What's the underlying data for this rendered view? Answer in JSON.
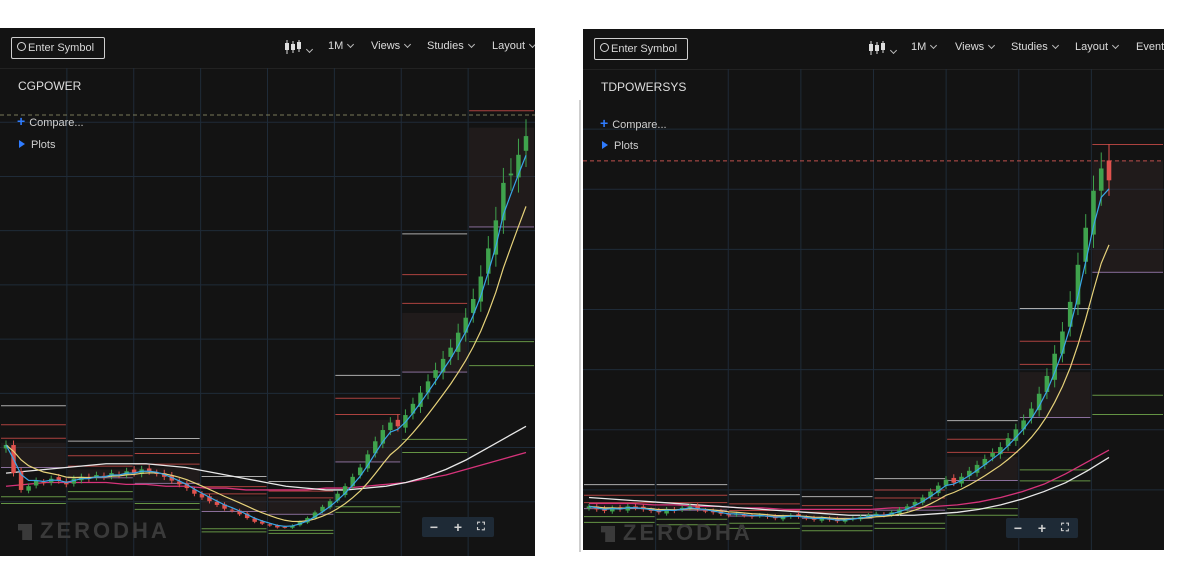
{
  "toolbar": {
    "symbol_placeholder": "Enter Symbol",
    "interval": "1M",
    "views": "Views",
    "studies": "Studies",
    "layout": "Layout",
    "events": "Events"
  },
  "legend": {
    "compare": "Compare...",
    "plots": "Plots"
  },
  "watermark": "ZERODHA",
  "zoom": {
    "minus": "−",
    "plus": "+",
    "fit": "⛶"
  },
  "colors": {
    "up": "#3fa34d",
    "down": "#e0524e",
    "ema_fast": "#39a7e8",
    "ema_mid": "#e6d27a",
    "sma_long": "#e8e8e8",
    "sma_longer": "#d6337a",
    "grid": "#1f2b38",
    "bg": "#131313"
  },
  "chart_data": [
    {
      "type": "candlestick",
      "title": "CGPOWER",
      "xlabel": "",
      "ylabel": "",
      "grid": true,
      "close": [
        60,
        45,
        36,
        38,
        41,
        40,
        42,
        41,
        39,
        42,
        43,
        42,
        44,
        43,
        45,
        44,
        46,
        45,
        47,
        46,
        45,
        43,
        41,
        39,
        37,
        34,
        32,
        30,
        28,
        26,
        25,
        23,
        21,
        19,
        18,
        17,
        16,
        16,
        17,
        19,
        21,
        24,
        27,
        30,
        34,
        38,
        43,
        48,
        55,
        62,
        68,
        72,
        70,
        76,
        82,
        88,
        94,
        100,
        106,
        112,
        120,
        128,
        138,
        150,
        165,
        180,
        200,
        205,
        215,
        225
      ],
      "fast_ma_color": "#39a7e8",
      "mid_ma_color": "#e6d27a",
      "long_ma": [
        45,
        46,
        47,
        48,
        49,
        50,
        50,
        50,
        49,
        48,
        46,
        44,
        42,
        40,
        38,
        37,
        36,
        36,
        37,
        38,
        40,
        43,
        47,
        52,
        58,
        64,
        70
      ],
      "longer_ma": [
        38,
        39,
        40,
        40,
        40,
        40,
        39,
        39,
        38,
        38,
        37,
        37,
        36,
        36,
        36,
        36,
        37,
        37,
        38,
        39,
        40,
        42,
        44,
        47,
        50,
        53,
        56
      ],
      "ylim": [
        5,
        240
      ]
    },
    {
      "type": "candlestick",
      "title": "TDPOWERSYS",
      "xlabel": "",
      "ylabel": "",
      "grid": true,
      "close": [
        42,
        40,
        39,
        41,
        40,
        42,
        41,
        40,
        39,
        38,
        40,
        39,
        41,
        42,
        40,
        39,
        38,
        37,
        36,
        37,
        36,
        35,
        36,
        35,
        34,
        35,
        36,
        35,
        34,
        33,
        34,
        33,
        32,
        33,
        34,
        35,
        36,
        37,
        36,
        38,
        40,
        42,
        45,
        48,
        52,
        56,
        60,
        58,
        62,
        66,
        70,
        74,
        78,
        82,
        88,
        94,
        100,
        108,
        118,
        130,
        145,
        160,
        180,
        205,
        230,
        255,
        270,
        262
      ],
      "fast_ma_color": "#39a7e8",
      "mid_ma_color": "#e6d27a",
      "long_ma": [
        48,
        47,
        46,
        45,
        44,
        43,
        42,
        41,
        40,
        39,
        38,
        37,
        36,
        36,
        36,
        36,
        37,
        38,
        40,
        43,
        47,
        52,
        58,
        66,
        75
      ],
      "longer_ma": [
        44,
        44,
        44,
        43,
        43,
        42,
        42,
        41,
        41,
        40,
        40,
        40,
        40,
        40,
        41,
        41,
        42,
        43,
        45,
        48,
        52,
        57,
        64,
        72,
        80
      ],
      "ylim": [
        20,
        300
      ]
    }
  ]
}
